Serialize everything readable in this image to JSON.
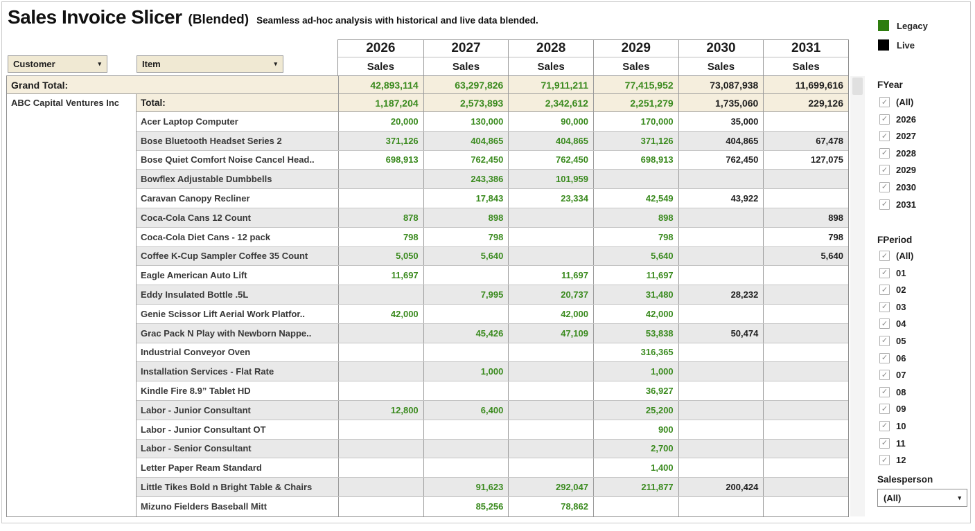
{
  "header": {
    "title": "Sales Invoice Slicer",
    "subtitle": "(Blended)",
    "tagline": "Seamless ad-hoc analysis with historical and live data blended."
  },
  "filters_top": {
    "customer_label": "Customer",
    "item_label": "Item"
  },
  "table": {
    "measure_label": "Sales",
    "years": [
      "2026",
      "2027",
      "2028",
      "2029",
      "2030",
      "2031"
    ],
    "live_from_index": 4,
    "grand_total_label": "Grand Total:",
    "grand_total_values": [
      "42,893,114",
      "63,297,826",
      "71,911,211",
      "77,415,952",
      "73,087,938",
      "11,699,616"
    ],
    "customer": "ABC Capital Ventures Inc",
    "customer_total_label": "Total:",
    "customer_total_values": [
      "1,187,204",
      "2,573,893",
      "2,342,612",
      "2,251,279",
      "1,735,060",
      "229,126"
    ],
    "rows": [
      {
        "item": "Acer Laptop Computer",
        "values": [
          "20,000",
          "130,000",
          "90,000",
          "170,000",
          "35,000",
          ""
        ]
      },
      {
        "item": "Bose Bluetooth Headset Series 2",
        "values": [
          "371,126",
          "404,865",
          "404,865",
          "371,126",
          "404,865",
          "67,478"
        ]
      },
      {
        "item": "Bose Quiet Comfort Noise Cancel Head..",
        "values": [
          "698,913",
          "762,450",
          "762,450",
          "698,913",
          "762,450",
          "127,075"
        ]
      },
      {
        "item": "Bowflex Adjustable Dumbbells",
        "values": [
          "",
          "243,386",
          "101,959",
          "",
          "",
          ""
        ]
      },
      {
        "item": "Caravan Canopy Recliner",
        "values": [
          "",
          "17,843",
          "23,334",
          "42,549",
          "43,922",
          ""
        ]
      },
      {
        "item": "Coca-Cola Cans 12 Count",
        "values": [
          "878",
          "898",
          "",
          "898",
          "",
          "898"
        ]
      },
      {
        "item": "Coca-Cola Diet Cans - 12 pack",
        "values": [
          "798",
          "798",
          "",
          "798",
          "",
          "798"
        ]
      },
      {
        "item": "Coffee K-Cup Sampler Coffee 35 Count",
        "values": [
          "5,050",
          "5,640",
          "",
          "5,640",
          "",
          "5,640"
        ]
      },
      {
        "item": "Eagle American Auto Lift",
        "values": [
          "11,697",
          "",
          "11,697",
          "11,697",
          "",
          ""
        ]
      },
      {
        "item": "Eddy Insulated Bottle .5L",
        "values": [
          "",
          "7,995",
          "20,737",
          "31,480",
          "28,232",
          ""
        ]
      },
      {
        "item": "Genie Scissor Lift Aerial Work Platfor..",
        "values": [
          "42,000",
          "",
          "42,000",
          "42,000",
          "",
          ""
        ]
      },
      {
        "item": "Grac Pack N Play with Newborn Nappe..",
        "values": [
          "",
          "45,426",
          "47,109",
          "53,838",
          "50,474",
          ""
        ]
      },
      {
        "item": "Industrial Conveyor Oven",
        "values": [
          "",
          "",
          "",
          "316,365",
          "",
          ""
        ]
      },
      {
        "item": "Installation Services - Flat Rate",
        "values": [
          "",
          "1,000",
          "",
          "1,000",
          "",
          ""
        ]
      },
      {
        "item": "Kindle Fire 8.9” Tablet HD",
        "values": [
          "",
          "",
          "",
          "36,927",
          "",
          ""
        ]
      },
      {
        "item": "Labor - Junior Consultant",
        "values": [
          "12,800",
          "6,400",
          "",
          "25,200",
          "",
          ""
        ]
      },
      {
        "item": "Labor - Junior Consultant OT",
        "values": [
          "",
          "",
          "",
          "900",
          "",
          ""
        ]
      },
      {
        "item": "Labor - Senior Consultant",
        "values": [
          "",
          "",
          "",
          "2,700",
          "",
          ""
        ]
      },
      {
        "item": "Letter Paper Ream Standard",
        "values": [
          "",
          "",
          "",
          "1,400",
          "",
          ""
        ]
      },
      {
        "item": "Little Tikes Bold n Bright Table & Chairs",
        "values": [
          "",
          "91,623",
          "292,047",
          "211,877",
          "200,424",
          ""
        ]
      },
      {
        "item": "Mizuno Fielders Baseball Mitt",
        "values": [
          "",
          "85,256",
          "78,862",
          "",
          "",
          ""
        ]
      }
    ]
  },
  "legend": {
    "items": [
      {
        "label": "Legacy",
        "color": "#2e7d0f"
      },
      {
        "label": "Live",
        "color": "#000000"
      }
    ]
  },
  "filters": {
    "fyear": {
      "title": "FYear",
      "options": [
        "(All)",
        "2026",
        "2027",
        "2028",
        "2029",
        "2030",
        "2031"
      ],
      "all_checked": true
    },
    "fperiod": {
      "title": "FPeriod",
      "options": [
        "(All)",
        "01",
        "02",
        "03",
        "04",
        "05",
        "06",
        "07",
        "08",
        "09",
        "10",
        "11",
        "12"
      ],
      "all_checked": true
    },
    "salesperson": {
      "title": "Salesperson",
      "value": "(All)"
    }
  },
  "icons": {
    "dropdown_caret": "▾",
    "checkmark": "✓"
  },
  "colors": {
    "legacy_text": "#3a8a1e",
    "live_text": "#1f1f1f",
    "total_row_bg": "#f5eedd",
    "alt_row_bg": "#e9e9e9",
    "quick_filter_bg": "#f0e9d3"
  }
}
